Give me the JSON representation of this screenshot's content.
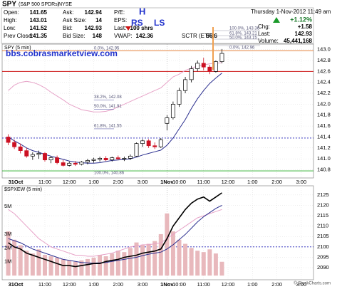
{
  "header": {
    "symbol": "SPY",
    "name": "(S&P 500 SPDRs)",
    "exchange": "NYSE",
    "rows": [
      [
        "Open:",
        "141.65",
        "Ask:",
        "142.94",
        "P/E:"
      ],
      [
        "High:",
        "143.01",
        "Ask Size:",
        "14",
        "EPS:"
      ],
      [
        "Low:",
        "141.52",
        "Bid:",
        "142.93",
        "Last:",
        "100 shrs"
      ],
      [
        "Prev Close:",
        "141.35",
        "Bid Size:",
        "148",
        "VWAP:",
        "142.36",
        "SCTR (ETF):",
        "56.6"
      ]
    ],
    "date": "Thursday 1-Nov-2012 11:49 am",
    "pct": "+1.12%",
    "stats": [
      [
        "Chg:",
        "+1.58"
      ],
      [
        "Last:",
        "142.93"
      ],
      [
        "Volume:",
        "45,441,168"
      ]
    ],
    "credit": "© StockCharts.com"
  },
  "chart_data": [
    {
      "type": "candlestick",
      "title": "SPY (5 min)",
      "x": [
        0,
        3,
        6,
        9,
        12,
        15,
        18,
        21,
        24,
        27,
        30,
        33,
        36,
        39,
        42,
        45,
        48,
        51,
        54,
        57,
        60,
        63,
        66,
        69,
        72,
        75,
        78,
        81,
        84,
        87,
        90,
        93,
        96,
        99,
        102,
        105
      ],
      "open": [
        141.4,
        141.3,
        141.22,
        141.15,
        141.05,
        141.08,
        141.1,
        140.98,
        141.02,
        140.93,
        140.88,
        140.92,
        140.9,
        140.94,
        140.97,
        140.99,
        141.01,
        140.98,
        141.02,
        141.0,
        141.01,
        141.05,
        141.28,
        141.33,
        141.24,
        141.22,
        141.65,
        141.75,
        142.0,
        142.25,
        142.45,
        142.65,
        142.75,
        142.68,
        142.6,
        142.78
      ],
      "high": [
        141.45,
        141.35,
        141.28,
        141.2,
        141.12,
        141.15,
        141.12,
        141.05,
        141.06,
        140.98,
        140.95,
        140.96,
        140.96,
        141.0,
        141.02,
        141.04,
        141.05,
        141.04,
        141.06,
        141.04,
        141.08,
        141.3,
        141.36,
        141.36,
        141.3,
        141.38,
        141.8,
        142.05,
        142.3,
        142.5,
        142.7,
        142.8,
        142.85,
        142.72,
        142.8,
        143.01
      ],
      "low": [
        141.25,
        141.18,
        141.1,
        141.02,
        140.98,
        141.0,
        140.95,
        140.92,
        140.9,
        140.86,
        140.86,
        140.87,
        140.88,
        140.9,
        140.93,
        140.95,
        140.96,
        140.95,
        140.98,
        140.96,
        140.98,
        141.04,
        141.22,
        141.2,
        141.18,
        141.2,
        141.52,
        141.72,
        141.95,
        142.2,
        142.4,
        142.6,
        142.62,
        142.55,
        142.58,
        142.75
      ],
      "close": [
        141.3,
        141.22,
        141.15,
        141.05,
        141.08,
        141.1,
        140.98,
        141.02,
        140.93,
        140.88,
        140.92,
        140.9,
        140.94,
        140.97,
        140.99,
        141.01,
        140.98,
        141.02,
        141.0,
        141.01,
        141.05,
        141.28,
        141.33,
        141.24,
        141.22,
        141.35,
        141.75,
        142.0,
        142.25,
        142.45,
        142.65,
        142.75,
        142.68,
        142.6,
        142.78,
        142.93
      ],
      "up_color": "#000000",
      "down_color": "#cc1122",
      "overlays": [
        {
          "color": "#2b2f8f",
          "values": [
            141.4,
            141.33,
            141.27,
            141.2,
            141.15,
            141.12,
            141.08,
            141.05,
            141.02,
            140.99,
            140.96,
            140.94,
            140.93,
            140.92,
            140.92,
            140.93,
            140.95,
            140.97,
            140.98,
            140.99,
            141.0,
            141.03,
            141.07,
            141.1,
            141.13,
            141.16,
            141.25,
            141.38,
            141.55,
            141.72,
            141.92,
            142.1,
            142.25,
            142.38,
            142.48,
            142.57
          ]
        },
        {
          "color": "#e7a3c8",
          "values": [
            142.25,
            142.35,
            142.4,
            142.42,
            142.4,
            142.36,
            142.3,
            142.22,
            142.15,
            142.08,
            142.0,
            141.95,
            141.9,
            141.88,
            141.86,
            141.86,
            141.87,
            141.9,
            141.95,
            142.0,
            142.05,
            142.1,
            142.15,
            142.2,
            142.25,
            142.3,
            142.4,
            142.5,
            142.55,
            142.62,
            142.66,
            142.7,
            142.72,
            142.74,
            142.75,
            142.76
          ]
        }
      ],
      "levels": [
        {
          "value": 142.98,
          "color": "#e07020"
        },
        {
          "value": 142.6,
          "color": "#cc1111"
        },
        {
          "value": 141.38,
          "color": "#2222bb"
        },
        {
          "value": 140.78,
          "color": "#22aa22"
        }
      ],
      "annotations": [
        "H",
        "RS",
        "LS",
        "bbs.cobrasmarketview.com",
        "0.0%, 142.95",
        "38.2%, 142.08",
        "50.0%, 141.91",
        "61.8%, 141.55",
        "100.0%, 140.86",
        "100.0%, 143.36",
        "61.8%, 143.21",
        "50.0%, 143.15",
        "0.0%, 142.96"
      ],
      "xlim": [
        -3,
        150
      ],
      "xticks": [
        {
          "value": 0,
          "label": "31Oct"
        },
        {
          "value": 18,
          "label": "11:00"
        },
        {
          "value": 30,
          "label": "12:00"
        },
        {
          "value": 42,
          "label": "1:00"
        },
        {
          "value": 54,
          "label": "2:00"
        },
        {
          "value": 66,
          "label": "3:00"
        },
        {
          "value": 78,
          "label": "1Nov"
        },
        {
          "value": 84,
          "label": "10:00"
        },
        {
          "value": 96,
          "label": "11:00"
        },
        {
          "value": 108,
          "label": "12:00"
        },
        {
          "value": 120,
          "label": "1:00"
        },
        {
          "value": 132,
          "label": "2:00"
        },
        {
          "value": 144,
          "label": "3:00"
        }
      ],
      "ylim": [
        140.65,
        143.1
      ],
      "yticks": [
        140.8,
        {
          "value": 141,
          "label": "141.0"
        },
        141.2,
        141.4,
        141.6,
        141.8,
        {
          "value": 142,
          "label": "142.0"
        },
        142.2,
        142.4,
        142.6,
        142.8,
        {
          "value": 143,
          "label": "143.0"
        }
      ],
      "grid": true
    },
    {
      "type": "line",
      "title": "$SPXEW (5 min)",
      "x": [
        0,
        3,
        6,
        9,
        12,
        15,
        18,
        21,
        24,
        27,
        30,
        33,
        36,
        39,
        42,
        45,
        48,
        51,
        54,
        57,
        60,
        63,
        66,
        69,
        72,
        75,
        78,
        81,
        84,
        87,
        90,
        93,
        96,
        99,
        102,
        105
      ],
      "series": [
        {
          "color": "#e8b8bc",
          "axis": "y2",
          "values": [
            3200000,
            2600000,
            2200000,
            1800000,
            1600000,
            1900000,
            1500000,
            1400000,
            1300000,
            1200000,
            1100000,
            1000000,
            1100000,
            1200000,
            1300000,
            1500000,
            1400000,
            1600000,
            1800000,
            1700000,
            2000000,
            2400000,
            2200000,
            2300000,
            2500000,
            3000000,
            4500000,
            3200000,
            2600000,
            2300000,
            2000000,
            1800000,
            1700000,
            1900000,
            1600000,
            1000000
          ]
        },
        {
          "color": "#e7a3c8",
          "values": [
            2118,
            2116,
            2113,
            2110,
            2107,
            2104,
            2102,
            2100,
            2099,
            2098,
            2097,
            2096,
            2096,
            2095.5,
            2095.5,
            2096,
            2096.5,
            2097,
            2098,
            2099,
            2100,
            2100.5,
            2101,
            2101,
            2101.5,
            2102,
            2104,
            2106,
            2108,
            2110,
            2112,
            2114,
            2115,
            2116,
            2117,
            2118
          ]
        },
        {
          "color": "#2b2f8f",
          "values": [
            2104,
            2103,
            2102,
            2100.5,
            2099,
            2098,
            2097,
            2096,
            2095,
            2094,
            2093.5,
            2093,
            2092.5,
            2092.3,
            2092.2,
            2092.3,
            2092.5,
            2093,
            2093.5,
            2094,
            2094.5,
            2095,
            2095.8,
            2096.5,
            2097,
            2097.5,
            2099,
            2101,
            2103.5,
            2106,
            2109,
            2112,
            2114.5,
            2116.5,
            2118.5,
            2120
          ]
        },
        {
          "color": "#000000",
          "values": [
            2102,
            2100,
            2099,
            2097,
            2096,
            2095,
            2094,
            2093,
            2092,
            2091,
            2091,
            2090.5,
            2091,
            2091.5,
            2092,
            2092,
            2093,
            2093.5,
            2094,
            2095,
            2095.5,
            2096,
            2097,
            2097.5,
            2098,
            2099,
            2104,
            2110,
            2114,
            2118,
            2121,
            2123,
            2124,
            2122,
            2124,
            2126
          ]
        }
      ],
      "levels": [
        {
          "value": 2100,
          "color": "#2222bb"
        }
      ],
      "xlim": [
        -3,
        150
      ],
      "xticks": [
        {
          "value": 0,
          "label": "31Oct"
        },
        {
          "value": 18,
          "label": "11:00"
        },
        {
          "value": 30,
          "label": "12:00"
        },
        {
          "value": 42,
          "label": "1:00"
        },
        {
          "value": 54,
          "label": "2:00"
        },
        {
          "value": 66,
          "label": "3:00"
        },
        {
          "value": 78,
          "label": "1Nov"
        },
        {
          "value": 84,
          "label": "10:00"
        },
        {
          "value": 96,
          "label": "11:00"
        },
        {
          "value": 108,
          "label": "12:00"
        },
        {
          "value": 120,
          "label": "1:00"
        },
        {
          "value": 132,
          "label": "2:00"
        },
        {
          "value": 144,
          "label": "3:00"
        }
      ],
      "ylim": [
        2084.2,
        2129.4
      ],
      "yticks": [
        2090,
        2095,
        2100,
        2105,
        2110,
        2115,
        2120,
        2125
      ],
      "y2lim": [
        -300000,
        6500000
      ],
      "y2ticks": [
        {
          "value": 1000000,
          "label": "1M"
        },
        {
          "value": 2000000,
          "label": "2M"
        },
        {
          "value": 3000000,
          "label": "3M"
        },
        {
          "value": 5000000,
          "label": "5M"
        }
      ],
      "grid": true
    }
  ]
}
